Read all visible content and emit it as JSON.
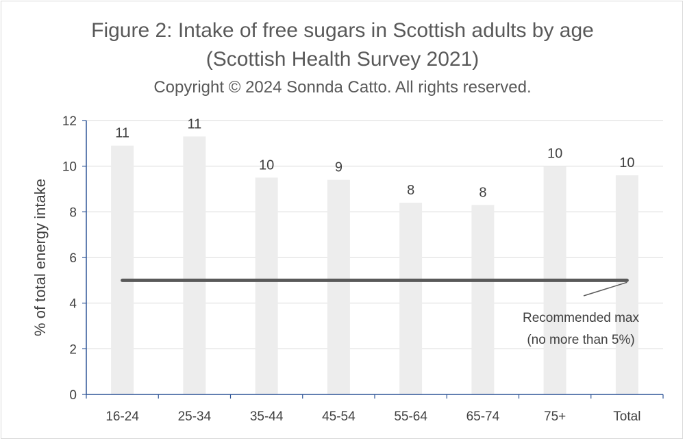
{
  "chart_data": {
    "type": "bar",
    "title": "Figure 2: Intake of free sugars in Scottish adults by age",
    "title_line2": "(Scottish Health Survey 2021)",
    "subtitle": "Copyright © 2024 Sonnda Catto. All rights reserved.",
    "xlabel": "",
    "ylabel": "% of total energy intake",
    "ylim": [
      0,
      12
    ],
    "yticks": [
      0,
      2,
      4,
      6,
      8,
      10,
      12
    ],
    "grid": true,
    "categories": [
      "16-24",
      "25-34",
      "35-44",
      "45-54",
      "55-64",
      "65-74",
      "75+",
      "Total"
    ],
    "values": [
      10.9,
      11.3,
      9.5,
      9.4,
      8.4,
      8.3,
      10.0,
      9.6
    ],
    "data_labels": [
      "11",
      "11",
      "10",
      "9",
      "8",
      "8",
      "10",
      "10"
    ],
    "reference_line": {
      "value": 5,
      "from_category": "16-24",
      "to_category": "Total",
      "label_line1": "Recommended max",
      "label_line2": "(no more than 5%)"
    },
    "colors": {
      "bar": "#ededed",
      "reference_line": "#595959",
      "grid": "#d9d9d9",
      "axis": "#2f5597",
      "text": "#404040"
    }
  }
}
